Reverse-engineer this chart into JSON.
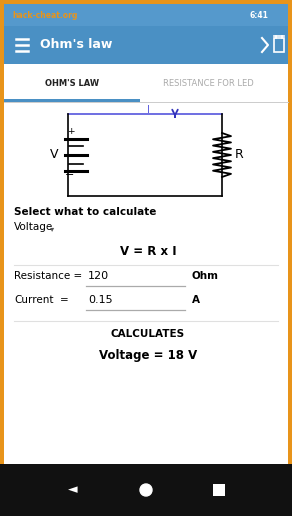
{
  "status_bar_bg": "#5599cc",
  "status_bar_text": "6:41",
  "toolbar_bg": "#4a90c4",
  "toolbar_title": "Ohm's law",
  "tab1_text": "OHM'S LAW",
  "tab2_text": "RESISTANCE FOR LED",
  "tab_indicator_color": "#4a90c4",
  "body_bg": "#ffffff",
  "select_label": "Select what to calculate",
  "dropdown_label": "Voltage",
  "formula": "V = R x I",
  "field1_label": "Resistance =",
  "field1_value": "120",
  "field1_unit": "Ohm",
  "field2_label": "Current",
  "field2_eq": "=",
  "field2_value": "0.15",
  "field2_unit": "A",
  "calculates_text": "CALCULATES",
  "result_text": "Voltage = 18 V",
  "nav_bar_bg": "#111111",
  "border_color": "#e8941a",
  "circuit_color": "#000000",
  "current_line_color": "#5555dd",
  "current_arrow_color": "#3333bb",
  "watermark_text": "hack-cheat.org",
  "watermark_color": "#e8941a",
  "battery_color": "#000000",
  "resistor_color": "#000000"
}
